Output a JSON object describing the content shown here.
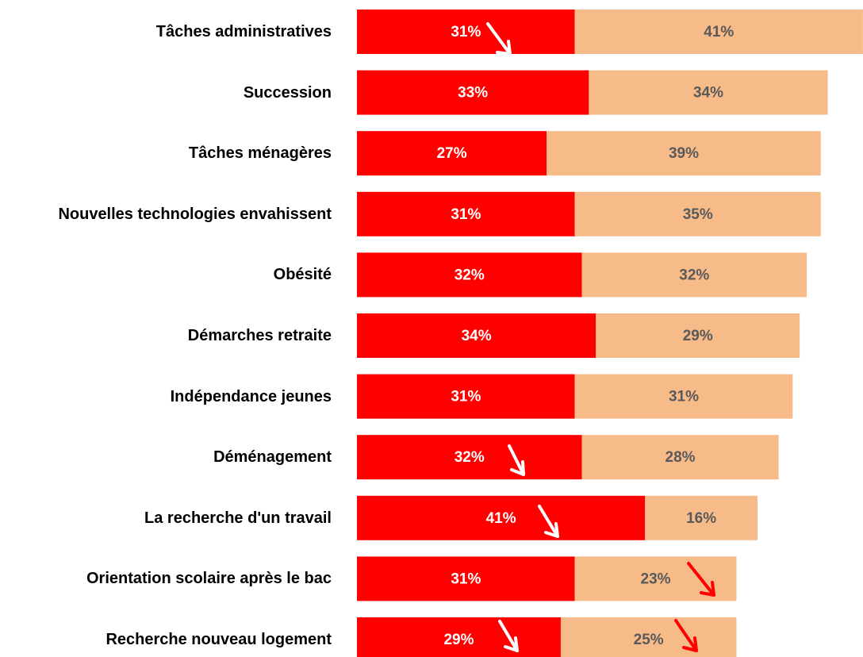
{
  "chart_data": {
    "type": "stacked-bar",
    "categories": [
      "Tâches administratives",
      "Succession",
      "Tâches ménagères",
      "Nouvelles technologies envahissent",
      "Obésité",
      "Démarches retraite",
      "Indépendance jeunes",
      "Déménagement",
      "La recherche d'un travail",
      "Orientation scolaire après le bac",
      "Recherche nouveau logement"
    ],
    "series": [
      {
        "color": "#ff0000",
        "values": [
          31,
          33,
          27,
          31,
          32,
          34,
          31,
          32,
          41,
          31,
          29
        ],
        "value_labels": [
          "31%",
          "33%",
          "27%",
          "31%",
          "32%",
          "34%",
          "31%",
          "32%",
          "41%",
          "31%",
          "29%"
        ]
      },
      {
        "color": "#f7bb8a",
        "values": [
          41,
          34,
          39,
          35,
          32,
          29,
          31,
          28,
          16,
          23,
          25
        ],
        "value_labels": [
          "41%",
          "34%",
          "39%",
          "35%",
          "32%",
          "29%",
          "31%",
          "28%",
          "16%",
          "23%",
          "25%"
        ]
      }
    ]
  }
}
